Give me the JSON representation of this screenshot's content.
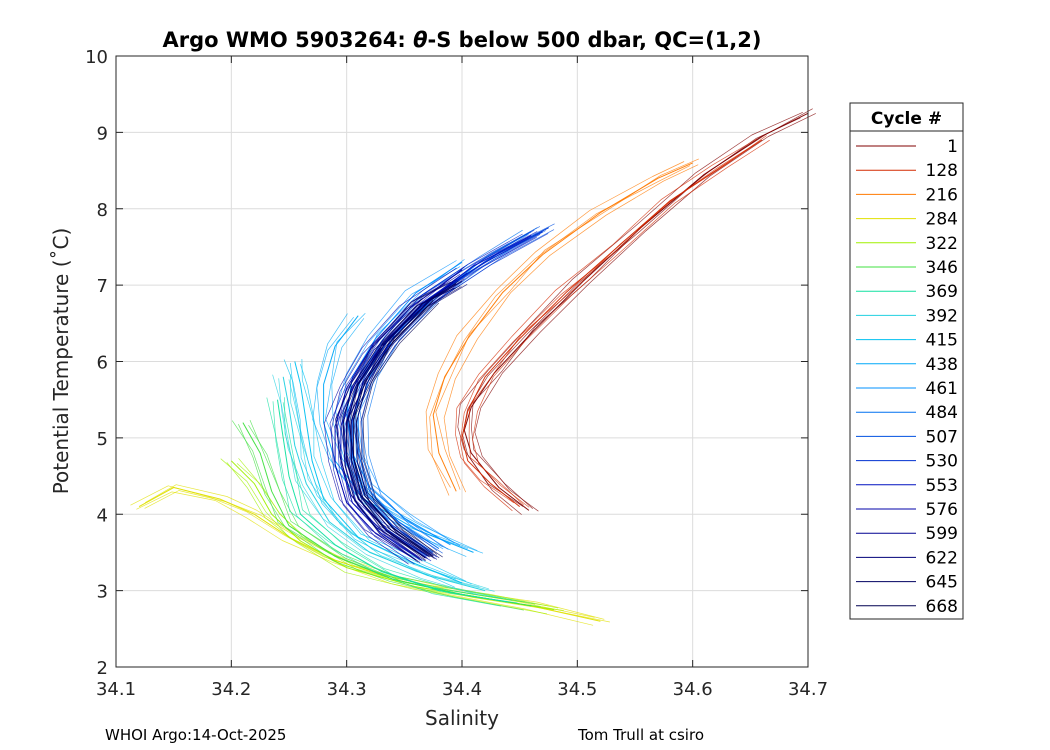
{
  "chart_data": {
    "type": "line",
    "title": "Argo WMO 5903264: θ-S below 500 dbar,  QC=(1,2)",
    "title_parts": {
      "prefix": "Argo WMO 5903264: ",
      "theta": "θ",
      "suffix": "-S below 500 dbar,  QC=(1,2)"
    },
    "xlabel": "Salinity",
    "ylabel": "Potential Temperature (˚C)",
    "xlim": [
      34.1,
      34.7
    ],
    "ylim": [
      2,
      10
    ],
    "xticks": [
      "34.1",
      "34.2",
      "34.3",
      "34.4",
      "34.5",
      "34.6",
      "34.7"
    ],
    "yticks": [
      "2",
      "3",
      "4",
      "5",
      "6",
      "7",
      "8",
      "9",
      "10"
    ],
    "grid": true,
    "legend_title": "Cycle #",
    "legend_position": "right-outside",
    "series": [
      {
        "name": "1",
        "color": "#800000",
        "points": [
          [
            34.458,
            4.05
          ],
          [
            34.432,
            4.35
          ],
          [
            34.408,
            4.8
          ],
          [
            34.402,
            5.1
          ],
          [
            34.408,
            5.4
          ],
          [
            34.428,
            5.85
          ],
          [
            34.462,
            6.4
          ],
          [
            34.505,
            7.05
          ],
          [
            34.555,
            7.75
          ],
          [
            34.61,
            8.45
          ],
          [
            34.66,
            8.95
          ],
          [
            34.7,
            9.25
          ]
        ]
      },
      {
        "name": "128",
        "color": "#d42a00",
        "points": [
          [
            34.45,
            4.1
          ],
          [
            34.425,
            4.4
          ],
          [
            34.405,
            4.7
          ],
          [
            34.4,
            5.0
          ],
          [
            34.405,
            5.35
          ],
          [
            34.42,
            5.8
          ],
          [
            34.45,
            6.3
          ],
          [
            34.49,
            6.9
          ],
          [
            34.535,
            7.5
          ],
          [
            34.58,
            8.1
          ],
          [
            34.625,
            8.55
          ],
          [
            34.66,
            8.9
          ]
        ]
      },
      {
        "name": "216",
        "color": "#ff7a00",
        "points": [
          [
            34.395,
            4.3
          ],
          [
            34.38,
            4.8
          ],
          [
            34.375,
            5.3
          ],
          [
            34.385,
            5.8
          ],
          [
            34.405,
            6.3
          ],
          [
            34.435,
            6.9
          ],
          [
            34.47,
            7.4
          ],
          [
            34.52,
            7.95
          ],
          [
            34.57,
            8.4
          ],
          [
            34.6,
            8.6
          ]
        ]
      },
      {
        "name": "284",
        "color": "#e0e000",
        "points": [
          [
            34.52,
            2.6
          ],
          [
            34.46,
            2.8
          ],
          [
            34.4,
            2.95
          ],
          [
            34.34,
            3.15
          ],
          [
            34.29,
            3.4
          ],
          [
            34.25,
            3.7
          ],
          [
            34.22,
            4.0
          ],
          [
            34.19,
            4.2
          ],
          [
            34.15,
            4.35
          ],
          [
            34.12,
            4.1
          ]
        ]
      },
      {
        "name": "322",
        "color": "#a0f000",
        "points": [
          [
            34.48,
            2.75
          ],
          [
            34.42,
            2.9
          ],
          [
            34.36,
            3.05
          ],
          [
            34.3,
            3.3
          ],
          [
            34.26,
            3.65
          ],
          [
            34.235,
            4.0
          ],
          [
            34.22,
            4.4
          ],
          [
            34.2,
            4.7
          ]
        ]
      },
      {
        "name": "346",
        "color": "#40e040",
        "points": [
          [
            34.46,
            2.8
          ],
          [
            34.4,
            2.95
          ],
          [
            34.34,
            3.15
          ],
          [
            34.29,
            3.45
          ],
          [
            34.25,
            3.85
          ],
          [
            34.235,
            4.3
          ],
          [
            34.225,
            4.8
          ],
          [
            34.21,
            5.2
          ]
        ]
      },
      {
        "name": "369",
        "color": "#10e0a0",
        "points": [
          [
            34.44,
            2.85
          ],
          [
            34.38,
            3.0
          ],
          [
            34.33,
            3.25
          ],
          [
            34.29,
            3.6
          ],
          [
            34.26,
            4.0
          ],
          [
            34.25,
            4.5
          ],
          [
            34.245,
            5.0
          ],
          [
            34.24,
            5.5
          ]
        ]
      },
      {
        "name": "392",
        "color": "#20d0e0",
        "points": [
          [
            34.42,
            3.0
          ],
          [
            34.37,
            3.2
          ],
          [
            34.32,
            3.5
          ],
          [
            34.285,
            3.9
          ],
          [
            34.265,
            4.4
          ],
          [
            34.255,
            4.9
          ],
          [
            34.25,
            5.4
          ],
          [
            34.245,
            5.8
          ]
        ]
      },
      {
        "name": "415",
        "color": "#00c0f0",
        "points": [
          [
            34.4,
            3.1
          ],
          [
            34.36,
            3.35
          ],
          [
            34.31,
            3.7
          ],
          [
            34.28,
            4.2
          ],
          [
            34.27,
            4.7
          ],
          [
            34.265,
            5.2
          ],
          [
            34.26,
            5.7
          ],
          [
            34.255,
            6.0
          ]
        ]
      },
      {
        "name": "438",
        "color": "#00a8f8",
        "points": [
          [
            34.41,
            3.5
          ],
          [
            34.36,
            3.8
          ],
          [
            34.315,
            4.2
          ],
          [
            34.29,
            4.7
          ],
          [
            34.28,
            5.2
          ],
          [
            34.28,
            5.7
          ],
          [
            34.29,
            6.2
          ],
          [
            34.31,
            6.6
          ]
        ]
      },
      {
        "name": "461",
        "color": "#0090ff",
        "points": [
          [
            34.39,
            3.6
          ],
          [
            34.35,
            3.95
          ],
          [
            34.32,
            4.35
          ],
          [
            34.305,
            4.8
          ],
          [
            34.3,
            5.3
          ],
          [
            34.305,
            5.8
          ],
          [
            34.325,
            6.3
          ],
          [
            34.36,
            6.9
          ],
          [
            34.4,
            7.3
          ]
        ]
      },
      {
        "name": "484",
        "color": "#0070f0",
        "points": [
          [
            34.38,
            3.55
          ],
          [
            34.345,
            3.9
          ],
          [
            34.32,
            4.3
          ],
          [
            34.31,
            4.8
          ],
          [
            34.31,
            5.3
          ],
          [
            34.32,
            5.8
          ],
          [
            34.34,
            6.3
          ],
          [
            34.375,
            6.85
          ],
          [
            34.42,
            7.35
          ],
          [
            34.46,
            7.7
          ]
        ]
      },
      {
        "name": "507",
        "color": "#0050e0",
        "points": [
          [
            34.375,
            3.5
          ],
          [
            34.34,
            3.85
          ],
          [
            34.315,
            4.25
          ],
          [
            34.305,
            4.75
          ],
          [
            34.305,
            5.25
          ],
          [
            34.315,
            5.75
          ],
          [
            34.34,
            6.3
          ],
          [
            34.38,
            6.9
          ],
          [
            34.43,
            7.4
          ],
          [
            34.475,
            7.75
          ]
        ]
      },
      {
        "name": "530",
        "color": "#0030d0",
        "points": [
          [
            34.37,
            3.45
          ],
          [
            34.335,
            3.8
          ],
          [
            34.31,
            4.2
          ],
          [
            34.3,
            4.7
          ],
          [
            34.3,
            5.2
          ],
          [
            34.31,
            5.7
          ],
          [
            34.335,
            6.25
          ],
          [
            34.37,
            6.8
          ],
          [
            34.42,
            7.3
          ],
          [
            34.47,
            7.7
          ]
        ]
      },
      {
        "name": "553",
        "color": "#0010c0",
        "points": [
          [
            34.365,
            3.4
          ],
          [
            34.33,
            3.75
          ],
          [
            34.305,
            4.15
          ],
          [
            34.295,
            4.65
          ],
          [
            34.295,
            5.15
          ],
          [
            34.305,
            5.65
          ],
          [
            34.33,
            6.2
          ],
          [
            34.365,
            6.75
          ],
          [
            34.41,
            7.25
          ],
          [
            34.46,
            7.65
          ]
        ]
      },
      {
        "name": "576",
        "color": "#0000a8",
        "points": [
          [
            34.36,
            3.4
          ],
          [
            34.325,
            3.75
          ],
          [
            34.3,
            4.15
          ],
          [
            34.29,
            4.65
          ],
          [
            34.29,
            5.15
          ],
          [
            34.3,
            5.65
          ],
          [
            34.32,
            6.15
          ],
          [
            34.355,
            6.7
          ],
          [
            34.4,
            7.2
          ]
        ]
      },
      {
        "name": "599",
        "color": "#000090",
        "points": [
          [
            34.37,
            3.42
          ],
          [
            34.335,
            3.78
          ],
          [
            34.31,
            4.2
          ],
          [
            34.3,
            4.7
          ],
          [
            34.3,
            5.2
          ],
          [
            34.31,
            5.7
          ],
          [
            34.33,
            6.2
          ],
          [
            34.365,
            6.75
          ],
          [
            34.39,
            7.0
          ]
        ]
      },
      {
        "name": "622",
        "color": "#000078",
        "points": [
          [
            34.372,
            3.44
          ],
          [
            34.338,
            3.8
          ],
          [
            34.314,
            4.22
          ],
          [
            34.304,
            4.72
          ],
          [
            34.304,
            5.22
          ],
          [
            34.314,
            5.72
          ],
          [
            34.336,
            6.22
          ],
          [
            34.37,
            6.78
          ],
          [
            34.4,
            7.05
          ]
        ]
      },
      {
        "name": "645",
        "color": "#000060",
        "points": [
          [
            34.368,
            3.43
          ],
          [
            34.334,
            3.79
          ],
          [
            34.31,
            4.21
          ],
          [
            34.3,
            4.71
          ],
          [
            34.3,
            5.21
          ],
          [
            34.31,
            5.71
          ],
          [
            34.332,
            6.21
          ],
          [
            34.366,
            6.76
          ],
          [
            34.395,
            7.02
          ]
        ]
      },
      {
        "name": "668",
        "color": "#000050",
        "points": [
          [
            34.375,
            3.45
          ],
          [
            34.34,
            3.82
          ],
          [
            34.316,
            4.24
          ],
          [
            34.306,
            4.74
          ],
          [
            34.306,
            5.24
          ],
          [
            34.316,
            5.74
          ],
          [
            34.34,
            6.25
          ],
          [
            34.375,
            6.8
          ]
        ]
      }
    ]
  },
  "footer": {
    "left": "WHOI Argo:14-Oct-2025",
    "right": "Tom Trull at csiro"
  }
}
